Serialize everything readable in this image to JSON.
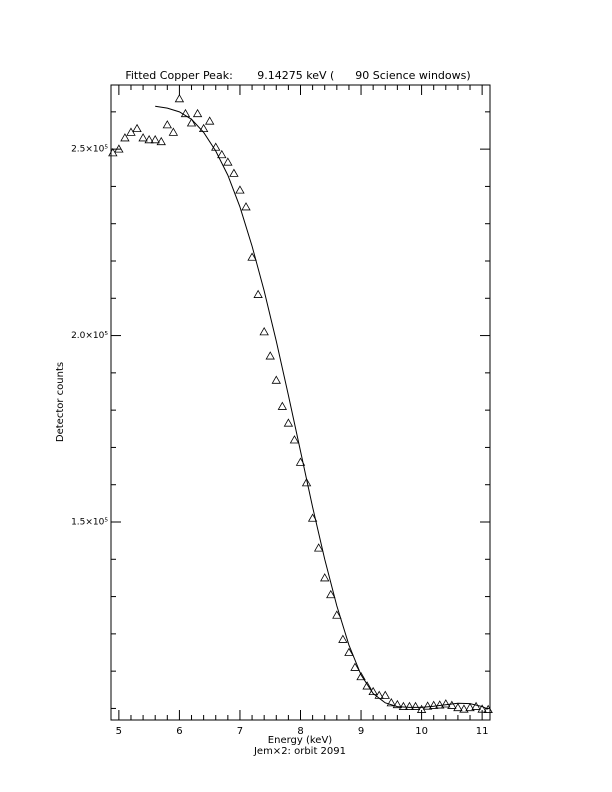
{
  "chart_data": {
    "type": "scatter",
    "title": "Fitted Copper Peak:       9.14275 keV (      90 Science windows)",
    "x_label": "Energy (keV)",
    "y_label": "Detector counts",
    "subtitle": "Jem×2: orbit 2091",
    "xlim": [
      4.87,
      11.13
    ],
    "ylim": [
      96900,
      267200
    ],
    "xticks": [
      5,
      6,
      7,
      8,
      9,
      10,
      11
    ],
    "xminorticks": [
      5.2,
      5.4,
      5.6,
      5.8,
      6.2,
      6.4,
      6.6,
      6.8,
      7.2,
      7.4,
      7.6,
      7.8,
      8.2,
      8.4,
      8.6,
      8.8,
      9.2,
      9.4,
      9.6,
      9.8,
      10.2,
      10.4,
      10.6,
      10.8
    ],
    "yticks": [
      {
        "value": 150000,
        "label": "1.5×10⁵"
      },
      {
        "value": 200000,
        "label": "2.0×10⁵"
      },
      {
        "value": 250000,
        "label": "2.5×10⁵"
      }
    ],
    "yminorticks": [
      100000,
      110000,
      120000,
      130000,
      140000,
      160000,
      170000,
      180000,
      190000,
      210000,
      220000,
      230000,
      240000,
      260000
    ],
    "color": "#000000",
    "series": [
      {
        "type": "scatter",
        "marker": "triangle",
        "x": [
          4.9,
          5.0,
          5.1,
          5.2,
          5.3,
          5.4,
          5.5,
          5.6,
          5.7,
          5.8,
          5.9,
          6.0,
          6.1,
          6.2,
          6.3,
          6.4,
          6.5,
          6.6,
          6.7,
          6.8,
          6.9,
          7.0,
          7.1,
          7.2,
          7.3,
          7.4,
          7.5,
          7.6,
          7.7,
          7.8,
          7.9,
          8.0,
          8.1,
          8.2,
          8.3,
          8.4,
          8.5,
          8.6,
          8.7,
          8.8,
          8.9,
          9.0,
          9.1,
          9.2,
          9.3,
          9.4,
          9.5,
          9.6,
          9.7,
          9.8,
          9.9,
          10.0,
          10.1,
          10.2,
          10.3,
          10.4,
          10.5,
          10.6,
          10.7,
          10.8,
          10.9,
          11.0,
          11.1
        ],
        "values": [
          249000,
          250000,
          253000,
          254500,
          255500,
          253000,
          252500,
          252500,
          252000,
          256500,
          254500,
          263500,
          259500,
          257000,
          259500,
          255500,
          257500,
          250500,
          248500,
          246500,
          243500,
          239000,
          234500,
          221000,
          211000,
          201000,
          194500,
          188000,
          181000,
          176500,
          172000,
          166000,
          160500,
          151000,
          143000,
          135000,
          130500,
          125000,
          118500,
          115000,
          111000,
          108500,
          106000,
          104500,
          103500,
          103500,
          101500,
          101000,
          100500,
          100500,
          100500,
          99700,
          100600,
          100800,
          100900,
          101200,
          100800,
          100200,
          99800,
          100200,
          100500,
          99800,
          99700
        ]
      },
      {
        "type": "line",
        "x": [
          5.6,
          5.8,
          6.0,
          6.2,
          6.4,
          6.6,
          6.8,
          7.0,
          7.2,
          7.4,
          7.6,
          7.8,
          8.0,
          8.2,
          8.4,
          8.6,
          8.8,
          9.0,
          9.2,
          9.4,
          9.6,
          9.8,
          10.0,
          10.2,
          10.4,
          10.6,
          10.8,
          11.0,
          11.1
        ],
        "values": [
          261500,
          261000,
          260000,
          258000,
          254500,
          249500,
          243000,
          234500,
          224000,
          212000,
          198500,
          184000,
          169000,
          154000,
          140000,
          127500,
          117000,
          109000,
          104000,
          101500,
          100500,
          100300,
          100300,
          100600,
          101000,
          101400,
          101300,
          100500,
          99800
        ]
      }
    ]
  }
}
